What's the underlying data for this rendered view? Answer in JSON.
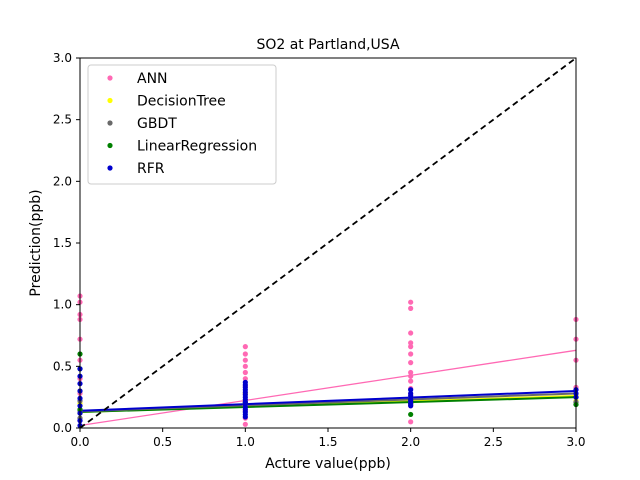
{
  "chart_data": {
    "type": "scatter",
    "title": "SO2 at Partland,USA",
    "xlabel": "Acture value(ppb)",
    "ylabel": "Prediction(ppb)",
    "xlim": [
      0.0,
      3.0
    ],
    "ylim": [
      0.0,
      3.0
    ],
    "xticks": [
      "0.0",
      "0.5",
      "1.0",
      "1.5",
      "2.0",
      "2.5",
      "3.0"
    ],
    "yticks": [
      "0.0",
      "0.5",
      "1.0",
      "1.5",
      "2.0",
      "2.5",
      "3.0"
    ],
    "legend_position": "top-left",
    "reference_line": {
      "style": "dashed",
      "color": "#000000",
      "points": [
        [
          0,
          0
        ],
        [
          3,
          3
        ]
      ]
    },
    "series": [
      {
        "name": "ANN",
        "color": "#ff69b4",
        "points": [
          [
            0,
            1.07
          ],
          [
            0,
            1.02
          ],
          [
            0,
            0.92
          ],
          [
            0,
            0.88
          ],
          [
            0,
            0.72
          ],
          [
            0,
            0.55
          ],
          [
            0,
            0.4
          ],
          [
            0,
            0.28
          ],
          [
            0,
            0.15
          ],
          [
            0,
            0.06
          ],
          [
            1,
            0.66
          ],
          [
            1,
            0.6
          ],
          [
            1,
            0.55
          ],
          [
            1,
            0.5
          ],
          [
            1,
            0.45
          ],
          [
            1,
            0.4
          ],
          [
            1,
            0.34
          ],
          [
            1,
            0.28
          ],
          [
            1,
            0.2
          ],
          [
            1,
            0.14
          ],
          [
            1,
            0.08
          ],
          [
            1,
            0.03
          ],
          [
            2,
            1.02
          ],
          [
            2,
            0.97
          ],
          [
            2,
            0.77
          ],
          [
            2,
            0.69
          ],
          [
            2,
            0.66
          ],
          [
            2,
            0.6
          ],
          [
            2,
            0.53
          ],
          [
            2,
            0.45
          ],
          [
            2,
            0.42
          ],
          [
            2,
            0.38
          ],
          [
            2,
            0.32
          ],
          [
            2,
            0.27
          ],
          [
            2,
            0.18
          ],
          [
            2,
            0.05
          ],
          [
            3,
            0.88
          ],
          [
            3,
            0.72
          ],
          [
            3,
            0.55
          ],
          [
            3,
            0.33
          ]
        ],
        "fit_line": [
          [
            0,
            0.02
          ],
          [
            3,
            0.63
          ]
        ]
      },
      {
        "name": "DecisionTree",
        "color": "#ffff00",
        "points": [
          [
            0,
            0.12
          ],
          [
            0,
            0.2
          ],
          [
            0,
            0.3
          ],
          [
            1,
            0.18
          ],
          [
            1,
            0.22
          ],
          [
            1,
            0.28
          ],
          [
            2,
            0.2
          ],
          [
            2,
            0.24
          ],
          [
            3,
            0.22
          ],
          [
            3,
            0.27
          ]
        ],
        "fit_line": [
          [
            0,
            0.13
          ],
          [
            3,
            0.26
          ]
        ]
      },
      {
        "name": "GBDT",
        "color": "#696969",
        "points": [
          [
            0,
            0.08
          ],
          [
            0,
            0.14
          ],
          [
            0,
            0.22
          ],
          [
            1,
            0.17
          ],
          [
            1,
            0.21
          ],
          [
            2,
            0.19
          ],
          [
            2,
            0.23
          ],
          [
            3,
            0.21
          ],
          [
            3,
            0.25
          ]
        ],
        "fit_line": [
          [
            0,
            0.135
          ],
          [
            3,
            0.28
          ]
        ]
      },
      {
        "name": "LinearRegression",
        "color": "#008000",
        "points": [
          [
            0,
            0.6
          ],
          [
            0,
            0.48
          ],
          [
            0,
            0.15
          ],
          [
            1,
            0.17
          ],
          [
            1,
            0.2
          ],
          [
            2,
            0.11
          ],
          [
            2,
            0.2
          ],
          [
            2,
            0.23
          ],
          [
            3,
            0.19
          ],
          [
            3,
            0.25
          ]
        ],
        "fit_line": [
          [
            0,
            0.13
          ],
          [
            3,
            0.25
          ]
        ]
      },
      {
        "name": "RFR",
        "color": "#0000cd",
        "points": [
          [
            0,
            0.48
          ],
          [
            0,
            0.42
          ],
          [
            0,
            0.36
          ],
          [
            0,
            0.3
          ],
          [
            0,
            0.24
          ],
          [
            0,
            0.18
          ],
          [
            0,
            0.12
          ],
          [
            0,
            0.06
          ],
          [
            0,
            0.02
          ],
          [
            1,
            0.37
          ],
          [
            1,
            0.35
          ],
          [
            1,
            0.33
          ],
          [
            1,
            0.31
          ],
          [
            1,
            0.29
          ],
          [
            1,
            0.27
          ],
          [
            1,
            0.25
          ],
          [
            1,
            0.23
          ],
          [
            1,
            0.21
          ],
          [
            1,
            0.19
          ],
          [
            1,
            0.17
          ],
          [
            1,
            0.15
          ],
          [
            1,
            0.13
          ],
          [
            1,
            0.11
          ],
          [
            1,
            0.09
          ],
          [
            2,
            0.31
          ],
          [
            2,
            0.28
          ],
          [
            2,
            0.26
          ],
          [
            2,
            0.24
          ],
          [
            2,
            0.22
          ],
          [
            2,
            0.2
          ],
          [
            2,
            0.18
          ],
          [
            3,
            0.31
          ],
          [
            3,
            0.28
          ],
          [
            3,
            0.25
          ]
        ],
        "fit_line": [
          [
            0,
            0.14
          ],
          [
            3,
            0.3
          ]
        ]
      }
    ]
  }
}
